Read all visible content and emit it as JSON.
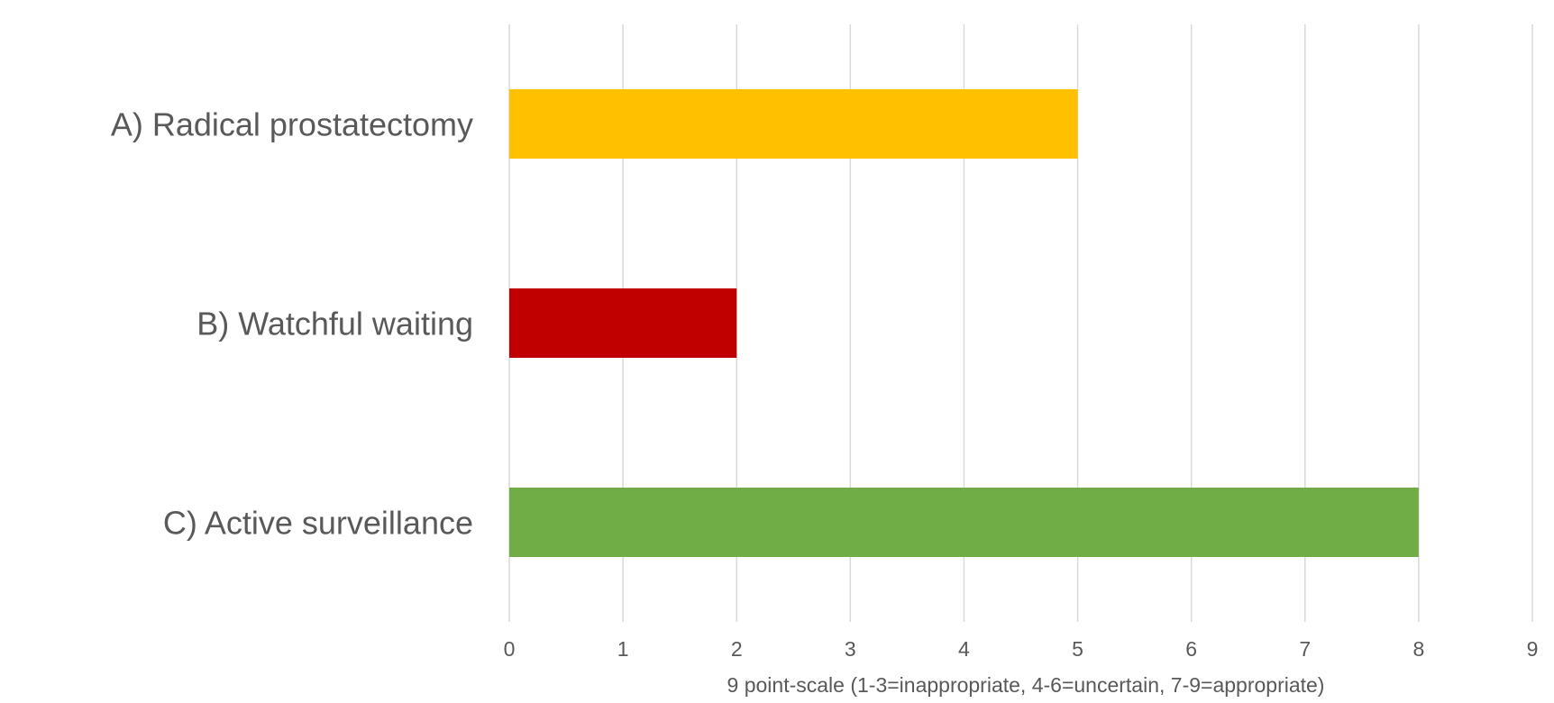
{
  "chart_data": {
    "type": "bar",
    "orientation": "horizontal",
    "categories": [
      "A) Radical prostatectomy",
      "B) Watchful waiting",
      "C) Active surveillance"
    ],
    "values": [
      5,
      2,
      8
    ],
    "colors": [
      "#FFC000",
      "#C00000",
      "#70AD47"
    ],
    "xlabel": "9 point-scale (1-3=inappropriate, 4-6=uncertain, 7-9=appropriate)",
    "ylabel": "",
    "xlim": [
      0,
      9
    ],
    "xticks": [
      "0",
      "1",
      "2",
      "3",
      "4",
      "5",
      "6",
      "7",
      "8",
      "9"
    ],
    "grid": true,
    "gridline_color": "#D9D9D9",
    "text_color": "#595959"
  }
}
